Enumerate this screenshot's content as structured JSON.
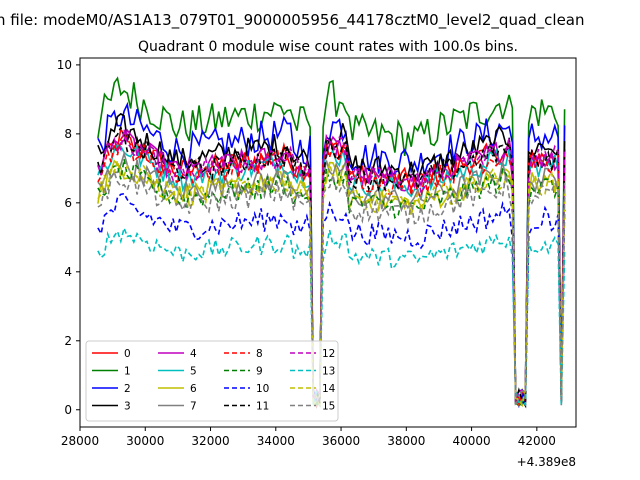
{
  "figure": {
    "suptitle": "n file: modeM0/AS1A13_079T01_9000005956_44178cztM0_level2_quad_clean"
  },
  "chart_data": {
    "type": "line",
    "title": "Quadrant 0 module wise count rates with 100.0s bins.",
    "xlabel": "",
    "ylabel": "",
    "x_offset_label": "+4.389e8",
    "xlim": [
      28000,
      43200
    ],
    "ylim": [
      -0.5,
      10.2
    ],
    "xticks": [
      28000,
      30000,
      32000,
      34000,
      36000,
      38000,
      40000,
      42000
    ],
    "yticks": [
      0,
      2,
      4,
      6,
      8,
      10
    ],
    "grid": false,
    "legend_position": "lower-left",
    "legend_columns": 4,
    "x_start": 28550,
    "x_step": 100,
    "dip_windows": [
      [
        35050,
        35450
      ],
      [
        41250,
        41750
      ],
      [
        42650,
        42850
      ]
    ],
    "series": [
      {
        "name": "0",
        "color": "#ff0000",
        "dash": "solid",
        "base": 7.0,
        "amp": 0.35
      },
      {
        "name": "1",
        "color": "#008000",
        "dash": "solid",
        "base": 8.3,
        "amp": 0.55
      },
      {
        "name": "2",
        "color": "#0000ff",
        "dash": "solid",
        "base": 7.6,
        "amp": 0.5
      },
      {
        "name": "3",
        "color": "#000000",
        "dash": "solid",
        "base": 7.3,
        "amp": 0.4
      },
      {
        "name": "4",
        "color": "#bf00bf",
        "dash": "solid",
        "base": 7.0,
        "amp": 0.35
      },
      {
        "name": "5",
        "color": "#00bfbf",
        "dash": "solid",
        "base": 6.8,
        "amp": 0.35
      },
      {
        "name": "6",
        "color": "#bfbf00",
        "dash": "solid",
        "base": 6.3,
        "amp": 0.35
      },
      {
        "name": "7",
        "color": "#808080",
        "dash": "solid",
        "base": 6.4,
        "amp": 0.35
      },
      {
        "name": "8",
        "color": "#ff0000",
        "dash": "dashed",
        "base": 6.9,
        "amp": 0.35
      },
      {
        "name": "9",
        "color": "#008000",
        "dash": "dashed",
        "base": 6.2,
        "amp": 0.35
      },
      {
        "name": "10",
        "color": "#0000ff",
        "dash": "dashed",
        "base": 5.3,
        "amp": 0.35
      },
      {
        "name": "11",
        "color": "#000000",
        "dash": "dashed",
        "base": 7.0,
        "amp": 0.35
      },
      {
        "name": "12",
        "color": "#bf00bf",
        "dash": "dashed",
        "base": 7.0,
        "amp": 0.35
      },
      {
        "name": "13",
        "color": "#00bfbf",
        "dash": "dashed",
        "base": 4.6,
        "amp": 0.3
      },
      {
        "name": "14",
        "color": "#bfbf00",
        "dash": "dashed",
        "base": 6.3,
        "amp": 0.35
      },
      {
        "name": "15",
        "color": "#808080",
        "dash": "dashed",
        "base": 6.0,
        "amp": 0.35
      }
    ]
  }
}
